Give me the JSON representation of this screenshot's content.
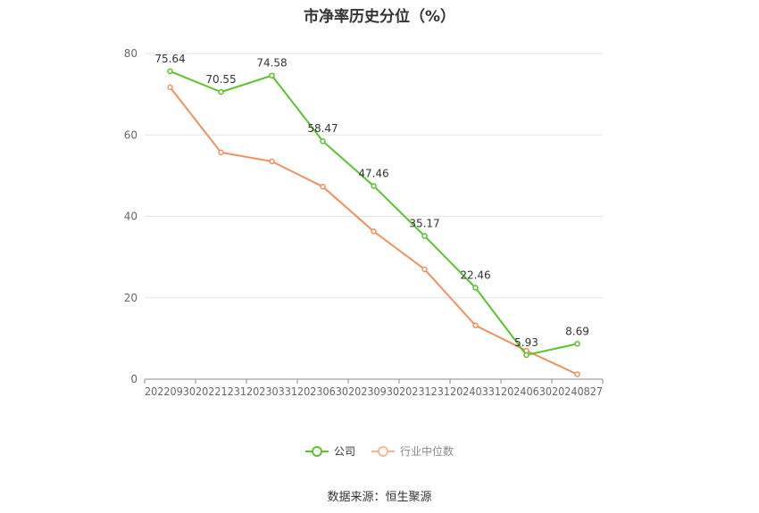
{
  "chart_data": {
    "type": "line",
    "title": "市净率历史分位（%）",
    "categories": [
      "20220930",
      "20221231",
      "20230331",
      "20230630",
      "20230930",
      "20231231",
      "20240331",
      "20240630",
      "20240827"
    ],
    "ylim": [
      0,
      80
    ],
    "yticks": [
      0,
      20,
      40,
      60,
      80
    ],
    "grid": true,
    "legend_position": "bottom-center",
    "series": [
      {
        "name": "公司",
        "color": "#5bc22a",
        "values": [
          75.64,
          70.55,
          74.58,
          58.47,
          47.46,
          35.17,
          22.46,
          5.93,
          8.69
        ],
        "data_labels": [
          "75.64",
          "70.55",
          "74.58",
          "58.47",
          "47.46",
          "35.17",
          "22.46",
          "5.93",
          "8.69"
        ]
      },
      {
        "name": "行业中位数",
        "color": "#f0905e",
        "values": [
          71.7,
          55.7,
          53.5,
          47.3,
          36.3,
          27.0,
          13.2,
          7.0,
          1.2
        ]
      }
    ]
  },
  "source_text": "数据来源：恒生聚源"
}
